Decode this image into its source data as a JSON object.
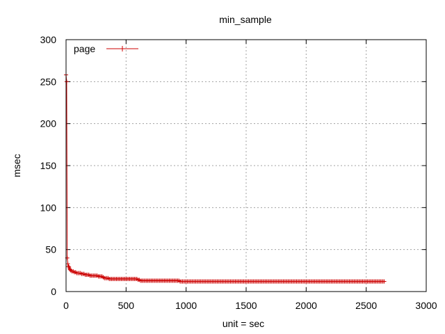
{
  "chart_data": {
    "type": "line",
    "title": "min_sample",
    "xlabel": "unit = sec",
    "ylabel": "msec",
    "xlim": [
      0,
      3000
    ],
    "ylim": [
      0,
      300
    ],
    "xticks": [
      0,
      500,
      1000,
      1500,
      2000,
      2500,
      3000
    ],
    "yticks": [
      0,
      50,
      100,
      150,
      200,
      250,
      300
    ],
    "grid": true,
    "legend_position": "top-left",
    "series": [
      {
        "name": "page",
        "color": "#cc0000",
        "marker": "plus",
        "x": [
          0,
          5,
          10,
          15,
          20,
          25,
          30,
          35,
          40,
          50,
          60,
          70,
          80,
          90,
          100,
          110,
          120,
          130,
          140,
          150,
          160,
          170,
          180,
          190,
          200,
          210,
          220,
          230,
          240,
          250,
          260,
          270,
          280,
          290,
          300,
          310,
          320,
          330,
          340,
          350,
          360,
          370,
          380,
          390,
          400,
          410,
          420,
          430,
          440,
          450,
          460,
          470,
          480,
          490,
          500,
          510,
          520,
          530,
          540,
          550,
          560,
          570,
          580,
          590,
          600,
          610,
          620,
          630,
          640,
          650,
          660,
          670,
          680,
          690,
          700,
          710,
          720,
          730,
          740,
          750,
          760,
          770,
          780,
          790,
          800,
          810,
          820,
          830,
          840,
          850,
          860,
          870,
          880,
          890,
          900,
          910,
          920,
          930,
          940,
          950,
          960,
          970,
          980,
          990,
          1000,
          1010,
          1020,
          1030,
          1040,
          1050,
          1060,
          1070,
          1080,
          1090,
          1100,
          1110,
          1120,
          1130,
          1140,
          1150,
          1160,
          1170,
          1180,
          1190,
          1200,
          1210,
          1220,
          1230,
          1240,
          1250,
          1260,
          1270,
          1280,
          1290,
          1300,
          1310,
          1320,
          1330,
          1340,
          1350,
          1360,
          1370,
          1380,
          1390,
          1400,
          1410,
          1420,
          1430,
          1440,
          1450,
          1460,
          1470,
          1480,
          1490,
          1500,
          1510,
          1520,
          1530,
          1540,
          1550,
          1560,
          1570,
          1580,
          1590,
          1600,
          1610,
          1620,
          1630,
          1640,
          1650,
          1660,
          1670,
          1680,
          1690,
          1700,
          1710,
          1720,
          1730,
          1740,
          1750,
          1760,
          1770,
          1780,
          1790,
          1800,
          1810,
          1820,
          1830,
          1840,
          1850,
          1860,
          1870,
          1880,
          1890,
          1900,
          1910,
          1920,
          1930,
          1940,
          1950,
          1960,
          1970,
          1980,
          1990,
          2000,
          2010,
          2020,
          2030,
          2040,
          2050,
          2060,
          2070,
          2080,
          2090,
          2100,
          2110,
          2120,
          2130,
          2140,
          2150,
          2160,
          2170,
          2180,
          2190,
          2200,
          2210,
          2220,
          2230,
          2240,
          2250,
          2260,
          2270,
          2280,
          2290,
          2300,
          2310,
          2320,
          2330,
          2340,
          2350,
          2360,
          2370,
          2380,
          2390,
          2400,
          2410,
          2420,
          2430,
          2440,
          2450,
          2460,
          2470,
          2480,
          2490,
          2500,
          2510,
          2520,
          2530,
          2540,
          2550,
          2560,
          2570,
          2580,
          2590,
          2600,
          2610,
          2620,
          2630,
          2640,
          2650
        ],
        "y": [
          258,
          250,
          40,
          33,
          30,
          29,
          27,
          26,
          25,
          24,
          24,
          23,
          23,
          22,
          22,
          22,
          22,
          21,
          21,
          21,
          20,
          20,
          20,
          20,
          19,
          19,
          19,
          19,
          19,
          19,
          19,
          18,
          18,
          18,
          18,
          17,
          16,
          16,
          16,
          16,
          15,
          15,
          15,
          15,
          15,
          15,
          15,
          15,
          15,
          15,
          15,
          15,
          15,
          15,
          15,
          15,
          15,
          15,
          15,
          15,
          15,
          15,
          15,
          15,
          14,
          14,
          13,
          13,
          13,
          13,
          13,
          13,
          13,
          13,
          13,
          13,
          13,
          13,
          13,
          13,
          13,
          13,
          13,
          13,
          13,
          13,
          13,
          13,
          13,
          13,
          13,
          13,
          13,
          13,
          13,
          13,
          13,
          13,
          13,
          12,
          12,
          12,
          12,
          12,
          12,
          12,
          12,
          12,
          12,
          12,
          12,
          12,
          12,
          12,
          12,
          12,
          12,
          12,
          12,
          12,
          12,
          12,
          12,
          12,
          12,
          12,
          12,
          12,
          12,
          12,
          12,
          12,
          12,
          12,
          12,
          12,
          12,
          12,
          12,
          12,
          12,
          12,
          12,
          12,
          12,
          12,
          12,
          12,
          12,
          12,
          12,
          12,
          12,
          12,
          12,
          12,
          12,
          12,
          12,
          12,
          12,
          12,
          12,
          12,
          12,
          12,
          12,
          12,
          12,
          12,
          12,
          12,
          12,
          12,
          12,
          12,
          12,
          12,
          12,
          12,
          12,
          12,
          12,
          12,
          12,
          12,
          12,
          12,
          12,
          12,
          12,
          12,
          12,
          12,
          12,
          12,
          12,
          12,
          12,
          12,
          12,
          12,
          12,
          12,
          12,
          12,
          12,
          12,
          12,
          12,
          12,
          12,
          12,
          12,
          12,
          12,
          12,
          12,
          12,
          12,
          12,
          12,
          12,
          12,
          12,
          12,
          12,
          12,
          12,
          12,
          12,
          12,
          12,
          12,
          12,
          12,
          12,
          12,
          12,
          12,
          12,
          12,
          12,
          12,
          12,
          12,
          12,
          12,
          12,
          12,
          12,
          12,
          12,
          12,
          12,
          12,
          12,
          12,
          12,
          12,
          12,
          12,
          12,
          12,
          12,
          12,
          12,
          12,
          12,
          12
        ]
      }
    ]
  }
}
